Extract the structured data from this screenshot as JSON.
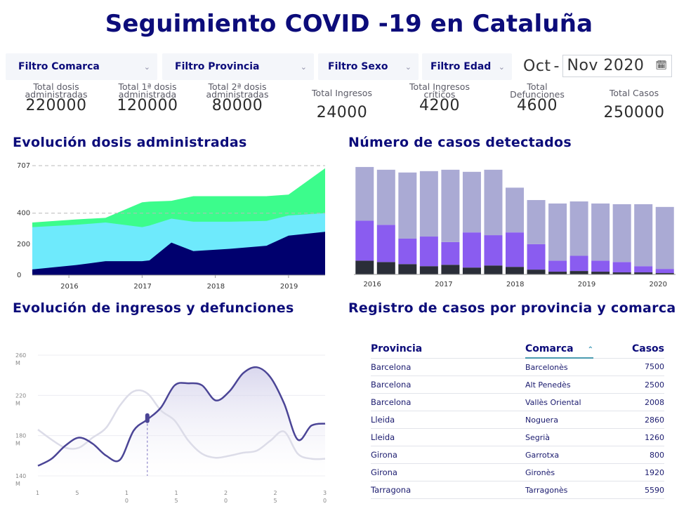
{
  "title": "Seguimiento COVID -19 en Cataluña",
  "filters": [
    {
      "label": "Filtro Comarca"
    },
    {
      "label": "Filtro Provincia"
    },
    {
      "label": "Filtro Sexo"
    },
    {
      "label": "Filtro Edad"
    }
  ],
  "date_range": {
    "from": "Oct",
    "separator": "-",
    "to": "Nov 2020"
  },
  "stats": [
    {
      "label_lines": [
        "Total dosis",
        "administradas"
      ],
      "value": "220000"
    },
    {
      "label_lines": [
        "Total 1ª dosis",
        "administrada"
      ],
      "value": "120000"
    },
    {
      "label_lines": [
        "Total 2ª dosis",
        "administradas"
      ],
      "value": "80000"
    },
    {
      "label_lines": [
        "Total Ingresos"
      ],
      "value": "24000"
    },
    {
      "label_lines": [
        "Total Ingresos",
        "críticos"
      ],
      "value": "4200"
    },
    {
      "label_lines": [
        "Total",
        "Defunciones"
      ],
      "value": "4600"
    },
    {
      "label_lines": [
        "Total Casos"
      ],
      "value": "250000"
    }
  ],
  "sections": {
    "doses": "Evolución dosis administradas",
    "cases": "Número de casos detectados",
    "admissions": "Evolución de ingresos y defunciones",
    "registry": "Registro de casos por provincia y comarca"
  },
  "colors": {
    "navy": "#00006e",
    "cyan": "#6eeafc",
    "green": "#3cfc8c",
    "lavender": "#aaaad4",
    "purple": "#8a5cf0",
    "dark": "#2a2e38",
    "line_main": "#4b4596",
    "line_secondary": "#dcdce8"
  },
  "chart_data": [
    {
      "type": "area",
      "x": [
        2015.5,
        2016.1,
        2016.5,
        2017.0,
        2017.1,
        2017.4,
        2017.7,
        2018.2,
        2018.7,
        2019.0,
        2019.5
      ],
      "series": [
        {
          "values": [
            37,
            65,
            90,
            90,
            95,
            210,
            155,
            170,
            190,
            255,
            280
          ]
        },
        {
          "values": [
            310,
            325,
            340,
            310,
            320,
            365,
            345,
            345,
            350,
            385,
            400
          ]
        },
        {
          "values": [
            340,
            360,
            370,
            470,
            475,
            480,
            510,
            510,
            510,
            520,
            690
          ]
        }
      ],
      "ylim": [
        0,
        707
      ],
      "yticks": [
        "0",
        "200",
        "400",
        "707"
      ],
      "xticks": [
        "2016",
        "2017",
        "2018",
        "2019"
      ],
      "xtick_values": [
        2016,
        2017,
        2018,
        2019
      ],
      "xlim": [
        2015.5,
        2019.5
      ],
      "ref_lines": [
        707,
        400
      ]
    },
    {
      "type": "bar",
      "stacked": true,
      "x": [
        2015.9,
        2016.2,
        2016.5,
        2016.8,
        2017.1,
        2017.4,
        2017.7,
        2018.0,
        2018.3,
        2018.6,
        2018.9,
        2019.2,
        2019.5,
        2019.8,
        2020.1
      ],
      "series": [
        {
          "values": [
            20,
            18,
            15,
            12,
            14,
            10,
            13,
            11,
            7,
            4,
            5,
            4,
            3,
            3,
            2
          ]
        },
        {
          "values": [
            58,
            54,
            37,
            43,
            33,
            51,
            44,
            50,
            37,
            16,
            22,
            16,
            15,
            9,
            6
          ]
        },
        {
          "values": [
            78,
            80,
            96,
            95,
            105,
            88,
            95,
            65,
            64,
            83,
            79,
            83,
            84,
            90,
            90
          ]
        }
      ],
      "ylim": [
        0,
        160
      ],
      "xticks": [
        "2016",
        "2017",
        "2018",
        "2019",
        "2020"
      ],
      "xtick_values": [
        2016,
        2017,
        2018,
        2019,
        2020
      ],
      "xlim": [
        2015.75,
        2020.25
      ]
    },
    {
      "type": "line",
      "x": [
        1,
        2,
        3,
        4,
        5,
        6,
        7,
        8,
        9,
        10,
        11,
        12,
        13,
        14,
        15,
        16,
        17,
        18,
        19,
        20,
        21,
        22,
        23,
        24,
        25,
        26,
        27,
        28,
        29,
        30
      ],
      "series": [
        {
          "values": [
            150,
            157,
            170,
            178,
            172,
            160,
            156,
            185,
            196,
            208,
            230,
            232,
            230,
            215,
            224,
            242,
            248,
            238,
            212,
            176,
            190,
            192,
            192,
            192,
            192,
            192,
            192,
            192,
            192,
            192
          ]
        },
        {
          "values": [
            186,
            176,
            168,
            168,
            178,
            188,
            210,
            224,
            222,
            205,
            195,
            175,
            162,
            158,
            160,
            163,
            165,
            175,
            184,
            162,
            157,
            157,
            157,
            157,
            157,
            157,
            157,
            157,
            157,
            157
          ]
        }
      ],
      "ylim": [
        140,
        260
      ],
      "yticks": [
        "260\nM",
        "220\nM",
        "180\nM",
        "140\nM"
      ],
      "ytick_values": [
        260,
        220,
        180,
        140
      ],
      "xticks": [
        "1",
        "5",
        "1\n0",
        "1\n5",
        "2\n0",
        "2\n5",
        "3\n0"
      ],
      "xtick_values": [
        1,
        5,
        10,
        15,
        20,
        25,
        30
      ],
      "xlim": [
        1,
        30
      ]
    }
  ],
  "table": {
    "headers": {
      "provincia": "Provincia",
      "comarca": "Comarca",
      "casos": "Casos"
    },
    "rows": [
      {
        "provincia": "Barcelona",
        "comarca": "Barcelonès",
        "casos": "7500"
      },
      {
        "provincia": "Barcelona",
        "comarca": "Alt Penedès",
        "casos": "2500"
      },
      {
        "provincia": "Barcelona",
        "comarca": "Vallès Oriental",
        "casos": "2008"
      },
      {
        "provincia": "Lleida",
        "comarca": "Noguera",
        "casos": "2860"
      },
      {
        "provincia": "Lleida",
        "comarca": "Segrià",
        "casos": "1260"
      },
      {
        "provincia": "Girona",
        "comarca": "Garrotxa",
        "casos": "800"
      },
      {
        "provincia": "Girona",
        "comarca": "Gironès",
        "casos": "1920"
      },
      {
        "provincia": "Tarragona",
        "comarca": "Tarragonès",
        "casos": "5590"
      }
    ]
  }
}
